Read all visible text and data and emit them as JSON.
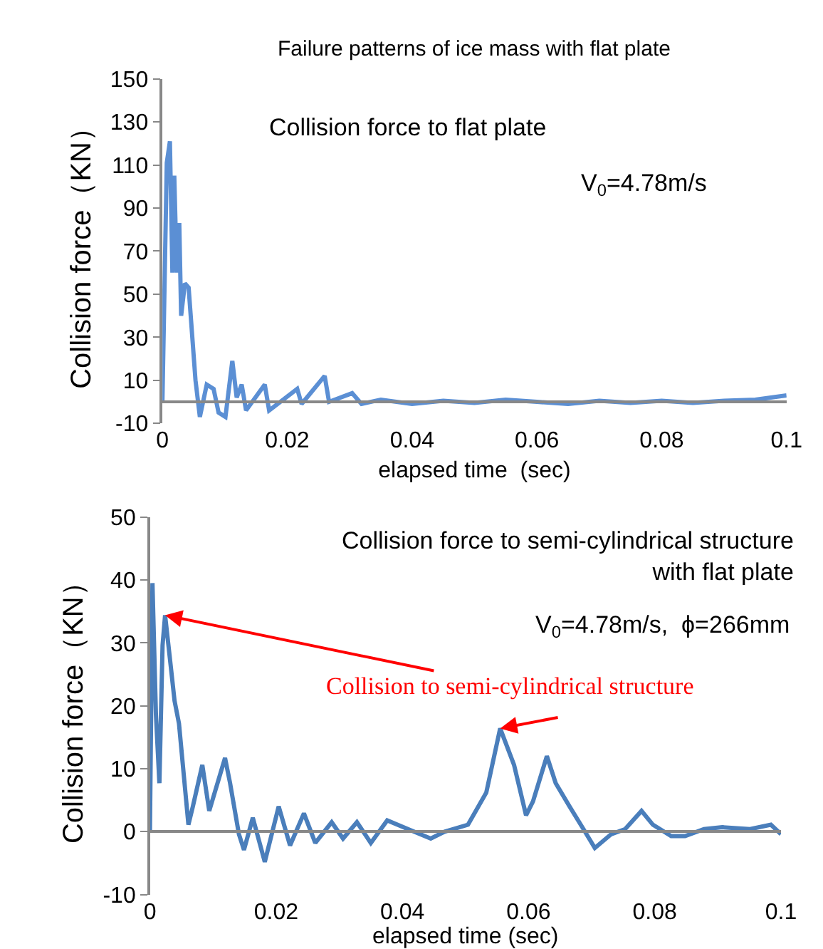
{
  "chart_data": [
    {
      "type": "line",
      "title": "Failure patterns of ice mass with flat plate",
      "xlabel": "elapsed time  (sec)",
      "ylabel": "Collision force（KN）",
      "xlim": [
        0,
        0.1
      ],
      "xticks": [
        0,
        0.02,
        0.04,
        0.06,
        0.08,
        0.1
      ],
      "ylim": [
        -10,
        150
      ],
      "yticks": [
        -10,
        10,
        30,
        50,
        70,
        90,
        110,
        130,
        150
      ],
      "line_style": "solid",
      "annotations": [
        "Collision force to flat plate",
        "V$_{0}$=4.78m/s"
      ],
      "series": [
        {
          "color": "#5b8fd4",
          "x": [
            0,
            0.0007,
            0.0012,
            0.0016,
            0.0019,
            0.0023,
            0.0027,
            0.003,
            0.0036,
            0.0042,
            0.0053,
            0.006,
            0.0071,
            0.0082,
            0.009,
            0.0101,
            0.0112,
            0.0119,
            0.0127,
            0.0134,
            0.0164,
            0.0171,
            0.0216,
            0.0223,
            0.026,
            0.0267,
            0.0304,
            0.0319,
            0.035,
            0.04,
            0.045,
            0.05,
            0.055,
            0.06,
            0.065,
            0.07,
            0.075,
            0.08,
            0.085,
            0.09,
            0.095,
            0.1
          ],
          "values": [
            0,
            111,
            121,
            60,
            105,
            60,
            83,
            40,
            55,
            53,
            10,
            -7,
            8,
            6,
            -5,
            -7,
            19,
            2,
            8,
            -4,
            8,
            -4,
            6,
            -1,
            12,
            0,
            4,
            -1,
            1,
            -1,
            0.5,
            -0.5,
            1,
            0,
            -1,
            0.5,
            -0.5,
            0.5,
            -0.5,
            0.5,
            1,
            3
          ]
        }
      ]
    },
    {
      "type": "line",
      "xlabel": "elapsed time (sec)",
      "ylabel": "Collision force（KN）",
      "xlim": [
        0,
        0.1
      ],
      "xticks": [
        0,
        0.02,
        0.04,
        0.06,
        0.08,
        0.1
      ],
      "ylim": [
        -10,
        50
      ],
      "yticks": [
        -10,
        0,
        10,
        20,
        30,
        40,
        50
      ],
      "line_style": "solid",
      "annotations": [
        "Collision force to semi-cylindrical structure\nwith flat plate",
        "V$_{0}$=4.78m/s,  ϕ=266mm",
        {
          "text": "Collision to semi-cylindrical structure",
          "x": 0.0024,
          "y": 34.4
        }
      ],
      "series": [
        {
          "color": "#4a7ebb",
          "x": [
            0,
            0.0004,
            0.00095,
            0.0015,
            0.002,
            0.0024,
            0.0031,
            0.0039,
            0.0046,
            0.0061,
            0.0068,
            0.0083,
            0.0094,
            0.0119,
            0.0127,
            0.0141,
            0.0149,
            0.0163,
            0.0182,
            0.0204,
            0.0222,
            0.0244,
            0.0262,
            0.0288,
            0.0306,
            0.0328,
            0.035,
            0.0376,
            0.0409,
            0.0445,
            0.0467,
            0.0504,
            0.0533,
            0.0555,
            0.0577,
            0.0596,
            0.0607,
            0.0629,
            0.0643,
            0.0665,
            0.0687,
            0.0705,
            0.0731,
            0.0753,
            0.0779,
            0.0797,
            0.0826,
            0.0848,
            0.0878,
            0.0907,
            0.0951,
            0.0984,
            0.1
          ],
          "values": [
            0,
            39.5,
            18.6,
            7.7,
            29.6,
            34.4,
            28.1,
            20.8,
            17.2,
            1.1,
            4,
            10.6,
            3.3,
            11.7,
            7.7,
            -0.4,
            -2.9,
            2.2,
            -4.8,
            4,
            -2.2,
            2.9,
            -1.8,
            1.5,
            -1.1,
            1.5,
            -1.8,
            1.8,
            0.4,
            -1.1,
            0,
            1.1,
            6.2,
            16.4,
            10.6,
            2.6,
            4.8,
            12,
            7.7,
            4,
            0.4,
            -2.6,
            -0.4,
            0.4,
            3.3,
            1.1,
            -0.7,
            -0.7,
            0.4,
            0.7,
            0.4,
            1.1,
            -0.4
          ]
        }
      ]
    }
  ]
}
